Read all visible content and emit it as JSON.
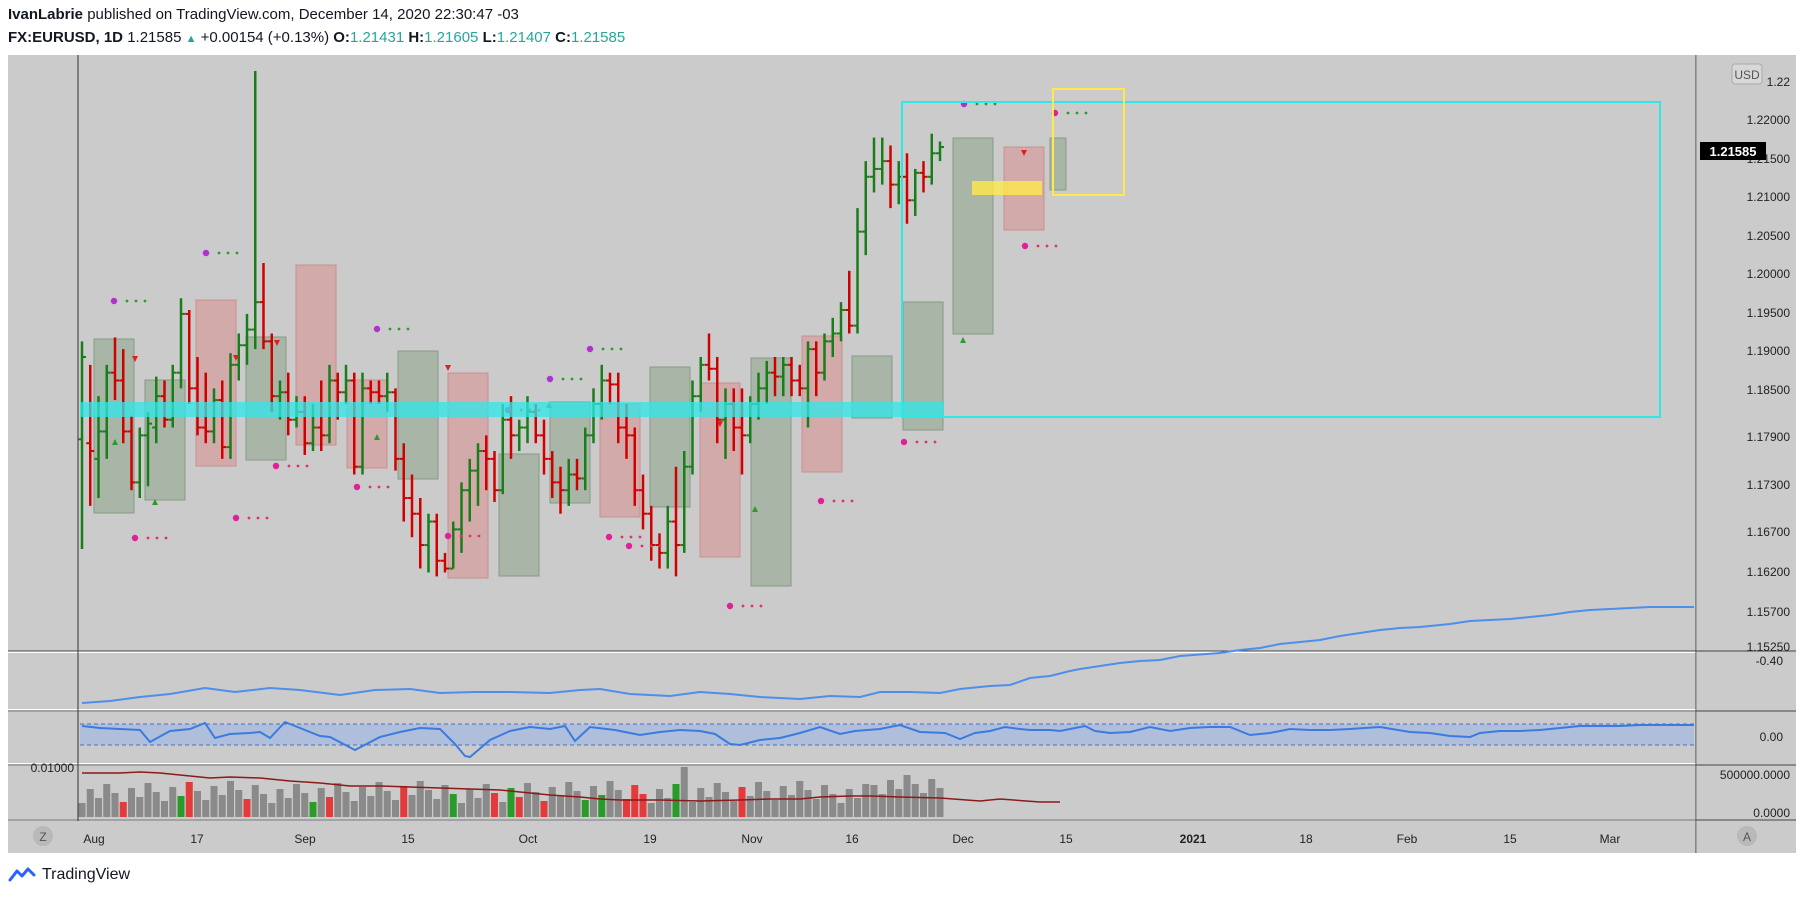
{
  "header": {
    "author": "IvanLabrie",
    "published": "published on TradingView.com, December 14, 2020 22:30:47 -03",
    "symbol": "FX:EURUSD, 1D",
    "last": "1.21585",
    "change": "+0.00154 (+0.13%)",
    "o_label": "O:",
    "o_val": "1.21431",
    "h_label": "H:",
    "h_val": "1.21605",
    "l_label": "L:",
    "l_val": "1.21407",
    "c_label": "C:",
    "c_val": "1.21585"
  },
  "footer": {
    "brand": "TradingView"
  },
  "buttons": {
    "left": "Z",
    "right": "A"
  },
  "colors": {
    "bg": "#cbcbcb",
    "up": "#1a7d1a",
    "down": "#d10000",
    "flat": "#2b2b2b",
    "cyan": "#2ee8e8",
    "yellow": "#ffe84a",
    "blue": "#4d8fea",
    "dot_magenta": "#e0209a"
  },
  "chart_data": {
    "type": "bar",
    "symbol": "EURUSD",
    "currency": "USD",
    "ylim": [
      1.1525,
      1.2255
    ],
    "y_ticks": [
      "1.22",
      "1.22000",
      "1.21500",
      "1.21000",
      "1.20500",
      "1.20000",
      "1.19500",
      "1.19000",
      "1.18500",
      "1.17900",
      "1.17300",
      "1.16700",
      "1.16200",
      "1.15700",
      "1.15250"
    ],
    "current_price_label": "1.21585",
    "x_ticks": [
      "Aug",
      "17",
      "Sep",
      "15",
      "Oct",
      "19",
      "Nov",
      "16",
      "Dec",
      "15",
      "2021",
      "18",
      "Feb",
      "15",
      "Mar"
    ],
    "series": [
      {
        "values": [
          {
            "o": 1.1785,
            "h": 1.191,
            "l": 1.1645,
            "c": 1.189
          },
          {
            "o": 1.178,
            "h": 1.188,
            "l": 1.17,
            "c": 1.177
          },
          {
            "o": 1.176,
            "h": 1.184,
            "l": 1.171,
            "c": 1.1795
          },
          {
            "o": 1.1795,
            "h": 1.188,
            "l": 1.176,
            "c": 1.187
          },
          {
            "o": 1.187,
            "h": 1.1915,
            "l": 1.1835,
            "c": 1.186
          },
          {
            "o": 1.186,
            "h": 1.19,
            "l": 1.178,
            "c": 1.1795
          },
          {
            "o": 1.1795,
            "h": 1.1815,
            "l": 1.172,
            "c": 1.173
          },
          {
            "o": 1.173,
            "h": 1.18,
            "l": 1.171,
            "c": 1.179
          },
          {
            "o": 1.179,
            "h": 1.182,
            "l": 1.1725,
            "c": 1.1805
          },
          {
            "o": 1.18,
            "h": 1.1865,
            "l": 1.178,
            "c": 1.184
          },
          {
            "o": 1.184,
            "h": 1.186,
            "l": 1.18,
            "c": 1.181
          },
          {
            "o": 1.181,
            "h": 1.188,
            "l": 1.18,
            "c": 1.187
          },
          {
            "o": 1.187,
            "h": 1.1965,
            "l": 1.185,
            "c": 1.1945
          },
          {
            "o": 1.1945,
            "h": 1.195,
            "l": 1.183,
            "c": 1.185
          },
          {
            "o": 1.185,
            "h": 1.189,
            "l": 1.179,
            "c": 1.18
          },
          {
            "o": 1.18,
            "h": 1.187,
            "l": 1.178,
            "c": 1.1795
          },
          {
            "o": 1.1795,
            "h": 1.185,
            "l": 1.178,
            "c": 1.1835
          },
          {
            "o": 1.1835,
            "h": 1.186,
            "l": 1.176,
            "c": 1.1775
          },
          {
            "o": 1.1775,
            "h": 1.1895,
            "l": 1.176,
            "c": 1.188
          },
          {
            "o": 1.188,
            "h": 1.192,
            "l": 1.186,
            "c": 1.1905
          },
          {
            "o": 1.1905,
            "h": 1.1945,
            "l": 1.188,
            "c": 1.1925
          },
          {
            "o": 1.1925,
            "h": 2.0,
            "l": 1.19,
            "c": 1.196
          },
          {
            "o": 1.196,
            "h": 1.201,
            "l": 1.19,
            "c": 1.191
          },
          {
            "o": 1.191,
            "h": 1.192,
            "l": 1.182,
            "c": 1.184
          },
          {
            "o": 1.184,
            "h": 1.186,
            "l": 1.181,
            "c": 1.1845
          },
          {
            "o": 1.1845,
            "h": 1.187,
            "l": 1.179,
            "c": 1.181
          },
          {
            "o": 1.181,
            "h": 1.184,
            "l": 1.18,
            "c": 1.182
          },
          {
            "o": 1.182,
            "h": 1.184,
            "l": 1.1765,
            "c": 1.178
          },
          {
            "o": 1.178,
            "h": 1.183,
            "l": 1.177,
            "c": 1.18
          },
          {
            "o": 1.18,
            "h": 1.186,
            "l": 1.177,
            "c": 1.179
          },
          {
            "o": 1.179,
            "h": 1.188,
            "l": 1.178,
            "c": 1.186
          },
          {
            "o": 1.186,
            "h": 1.187,
            "l": 1.181,
            "c": 1.1845
          },
          {
            "o": 1.1845,
            "h": 1.188,
            "l": 1.183,
            "c": 1.186
          },
          {
            "o": 1.186,
            "h": 1.187,
            "l": 1.174,
            "c": 1.175
          },
          {
            "o": 1.175,
            "h": 1.187,
            "l": 1.174,
            "c": 1.185
          },
          {
            "o": 1.185,
            "h": 1.186,
            "l": 1.183,
            "c": 1.1845
          },
          {
            "o": 1.1845,
            "h": 1.186,
            "l": 1.183,
            "c": 1.184
          },
          {
            "o": 1.184,
            "h": 1.187,
            "l": 1.182,
            "c": 1.1845
          },
          {
            "o": 1.1845,
            "h": 1.185,
            "l": 1.1745,
            "c": 1.176
          },
          {
            "o": 1.176,
            "h": 1.178,
            "l": 1.168,
            "c": 1.171
          },
          {
            "o": 1.171,
            "h": 1.174,
            "l": 1.166,
            "c": 1.169
          },
          {
            "o": 1.169,
            "h": 1.171,
            "l": 1.162,
            "c": 1.165
          },
          {
            "o": 1.165,
            "h": 1.169,
            "l": 1.1615,
            "c": 1.168
          },
          {
            "o": 1.168,
            "h": 1.169,
            "l": 1.161,
            "c": 1.163
          },
          {
            "o": 1.163,
            "h": 1.164,
            "l": 1.1615,
            "c": 1.162
          },
          {
            "o": 1.162,
            "h": 1.168,
            "l": 1.162,
            "c": 1.167
          },
          {
            "o": 1.167,
            "h": 1.173,
            "l": 1.164,
            "c": 1.172
          },
          {
            "o": 1.172,
            "h": 1.176,
            "l": 1.168,
            "c": 1.1745
          },
          {
            "o": 1.1745,
            "h": 1.178,
            "l": 1.17,
            "c": 1.177
          },
          {
            "o": 1.177,
            "h": 1.179,
            "l": 1.172,
            "c": 1.176
          },
          {
            "o": 1.176,
            "h": 1.177,
            "l": 1.1705,
            "c": 1.172
          },
          {
            "o": 1.172,
            "h": 1.183,
            "l": 1.1715,
            "c": 1.181
          },
          {
            "o": 1.181,
            "h": 1.184,
            "l": 1.176,
            "c": 1.179
          },
          {
            "o": 1.179,
            "h": 1.181,
            "l": 1.177,
            "c": 1.18
          },
          {
            "o": 1.18,
            "h": 1.184,
            "l": 1.178,
            "c": 1.182
          },
          {
            "o": 1.182,
            "h": 1.183,
            "l": 1.178,
            "c": 1.179
          },
          {
            "o": 1.179,
            "h": 1.181,
            "l": 1.174,
            "c": 1.176
          },
          {
            "o": 1.176,
            "h": 1.177,
            "l": 1.171,
            "c": 1.173
          },
          {
            "o": 1.173,
            "h": 1.175,
            "l": 1.169,
            "c": 1.172
          },
          {
            "o": 1.172,
            "h": 1.176,
            "l": 1.17,
            "c": 1.174
          },
          {
            "o": 1.174,
            "h": 1.176,
            "l": 1.172,
            "c": 1.1735
          },
          {
            "o": 1.1735,
            "h": 1.18,
            "l": 1.172,
            "c": 1.179
          },
          {
            "o": 1.179,
            "h": 1.185,
            "l": 1.178,
            "c": 1.183
          },
          {
            "o": 1.183,
            "h": 1.188,
            "l": 1.181,
            "c": 1.186
          },
          {
            "o": 1.186,
            "h": 1.187,
            "l": 1.183,
            "c": 1.1855
          },
          {
            "o": 1.1855,
            "h": 1.187,
            "l": 1.178,
            "c": 1.18
          },
          {
            "o": 1.18,
            "h": 1.183,
            "l": 1.176,
            "c": 1.179
          },
          {
            "o": 1.179,
            "h": 1.18,
            "l": 1.17,
            "c": 1.172
          },
          {
            "o": 1.172,
            "h": 1.174,
            "l": 1.167,
            "c": 1.169
          },
          {
            "o": 1.169,
            "h": 1.17,
            "l": 1.163,
            "c": 1.165
          },
          {
            "o": 1.165,
            "h": 1.1665,
            "l": 1.162,
            "c": 1.164
          },
          {
            "o": 1.164,
            "h": 1.17,
            "l": 1.162,
            "c": 1.168
          },
          {
            "o": 1.168,
            "h": 1.175,
            "l": 1.161,
            "c": 1.165
          },
          {
            "o": 1.165,
            "h": 1.177,
            "l": 1.164,
            "c": 1.175
          },
          {
            "o": 1.175,
            "h": 1.186,
            "l": 1.174,
            "c": 1.184
          },
          {
            "o": 1.184,
            "h": 1.189,
            "l": 1.182,
            "c": 1.188
          },
          {
            "o": 1.188,
            "h": 1.192,
            "l": 1.186,
            "c": 1.1875
          },
          {
            "o": 1.1875,
            "h": 1.189,
            "l": 1.178,
            "c": 1.181
          },
          {
            "o": 1.181,
            "h": 1.185,
            "l": 1.176,
            "c": 1.183
          },
          {
            "o": 1.183,
            "h": 1.185,
            "l": 1.177,
            "c": 1.18
          },
          {
            "o": 1.18,
            "h": 1.185,
            "l": 1.174,
            "c": 1.179
          },
          {
            "o": 1.179,
            "h": 1.184,
            "l": 1.178,
            "c": 1.183
          },
          {
            "o": 1.183,
            "h": 1.187,
            "l": 1.181,
            "c": 1.185
          },
          {
            "o": 1.185,
            "h": 1.1885,
            "l": 1.183,
            "c": 1.187
          },
          {
            "o": 1.187,
            "h": 1.189,
            "l": 1.184,
            "c": 1.1865
          },
          {
            "o": 1.1865,
            "h": 1.189,
            "l": 1.184,
            "c": 1.188
          },
          {
            "o": 1.188,
            "h": 1.189,
            "l": 1.184,
            "c": 1.186
          },
          {
            "o": 1.186,
            "h": 1.188,
            "l": 1.184,
            "c": 1.185
          },
          {
            "o": 1.185,
            "h": 1.191,
            "l": 1.18,
            "c": 1.19
          },
          {
            "o": 1.19,
            "h": 1.191,
            "l": 1.184,
            "c": 1.187
          },
          {
            "o": 1.187,
            "h": 1.192,
            "l": 1.186,
            "c": 1.191
          },
          {
            "o": 1.191,
            "h": 1.194,
            "l": 1.189,
            "c": 1.192
          },
          {
            "o": 1.192,
            "h": 1.196,
            "l": 1.191,
            "c": 1.195
          },
          {
            "o": 1.195,
            "h": 1.2,
            "l": 1.192,
            "c": 1.193
          },
          {
            "o": 1.193,
            "h": 1.208,
            "l": 1.192,
            "c": 1.205
          },
          {
            "o": 1.205,
            "h": 1.214,
            "l": 1.202,
            "c": 1.212
          },
          {
            "o": 1.212,
            "h": 1.217,
            "l": 1.21,
            "c": 1.213
          },
          {
            "o": 1.213,
            "h": 1.217,
            "l": 1.211,
            "c": 1.214
          },
          {
            "o": 1.214,
            "h": 1.216,
            "l": 1.208,
            "c": 1.211
          },
          {
            "o": 1.211,
            "h": 1.214,
            "l": 1.2085,
            "c": 1.212
          },
          {
            "o": 1.212,
            "h": 1.215,
            "l": 1.206,
            "c": 1.209
          },
          {
            "o": 1.209,
            "h": 1.213,
            "l": 1.207,
            "c": 1.2125
          },
          {
            "o": 1.2125,
            "h": 1.214,
            "l": 1.21,
            "c": 1.212
          },
          {
            "o": 1.212,
            "h": 1.2175,
            "l": 1.211,
            "c": 1.215
          },
          {
            "o": 1.215,
            "h": 1.2165,
            "l": 1.214,
            "c": 1.2158
          }
        ]
      }
    ],
    "oscillator1": {
      "label": "-0.40"
    },
    "oscillator2": {
      "label": "0.00"
    },
    "volume": {
      "left_label": "0.01000",
      "labels": [
        "500000.0000",
        "0.0000"
      ]
    }
  }
}
